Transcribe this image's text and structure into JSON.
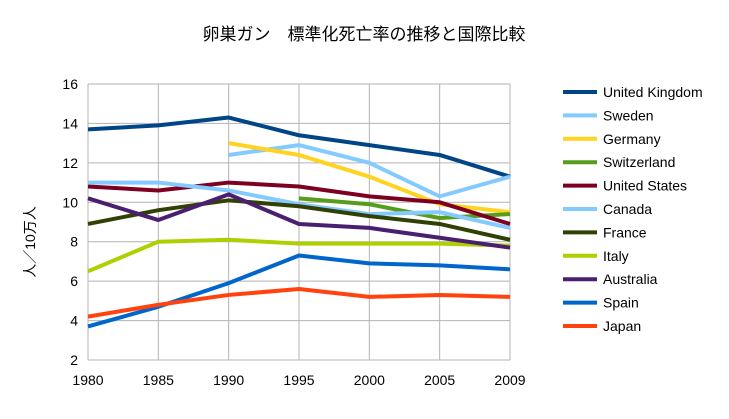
{
  "chart_data": {
    "type": "line",
    "title": "卵巣ガン　標準化死亡率の推移と国際比較",
    "xlabel": "",
    "ylabel": "人／10万人",
    "ylim": [
      2,
      16
    ],
    "yticks": [
      "2",
      "4",
      "6",
      "8",
      "10",
      "12",
      "14",
      "16"
    ],
    "categories": [
      "1980",
      "1985",
      "1990",
      "1995",
      "2000",
      "2005",
      "2009"
    ],
    "grid": true,
    "legend": "right",
    "series": [
      {
        "name": "United Kingdom",
        "color": "#004586",
        "values": [
          13.7,
          13.9,
          14.3,
          13.4,
          12.9,
          12.4,
          11.3
        ]
      },
      {
        "name": "Sweden",
        "color": "#83caff",
        "values": [
          null,
          null,
          12.4,
          12.9,
          12.0,
          10.3,
          11.3
        ]
      },
      {
        "name": "Germany",
        "color": "#ffd320",
        "values": [
          null,
          null,
          13.0,
          12.4,
          11.3,
          9.9,
          9.5
        ]
      },
      {
        "name": "Switzerland",
        "color": "#579d1c",
        "values": [
          null,
          null,
          null,
          10.2,
          9.9,
          9.2,
          9.4
        ]
      },
      {
        "name": "United States",
        "color": "#7e0021",
        "values": [
          10.8,
          10.6,
          11.0,
          10.8,
          10.3,
          10.0,
          8.9
        ]
      },
      {
        "name": "Canada",
        "color": "#83caff",
        "values": [
          11.0,
          11.0,
          10.6,
          9.9,
          9.4,
          9.5,
          8.7
        ]
      },
      {
        "name": "France",
        "color": "#314004",
        "values": [
          8.9,
          9.6,
          10.1,
          9.8,
          9.3,
          8.9,
          8.1
        ]
      },
      {
        "name": "Italy",
        "color": "#aecf00",
        "values": [
          6.5,
          8.0,
          8.1,
          7.9,
          7.9,
          7.9,
          7.8
        ]
      },
      {
        "name": "Australia",
        "color": "#4b1f6f",
        "values": [
          10.2,
          9.1,
          10.4,
          8.9,
          8.7,
          8.2,
          7.7
        ]
      },
      {
        "name": "Spain",
        "color": "#0066cc",
        "values": [
          3.7,
          4.7,
          5.9,
          7.3,
          6.9,
          6.8,
          6.6
        ]
      },
      {
        "name": "Japan",
        "color": "#ff420e",
        "values": [
          4.2,
          4.8,
          5.3,
          5.6,
          5.2,
          5.3,
          5.2
        ]
      }
    ]
  }
}
